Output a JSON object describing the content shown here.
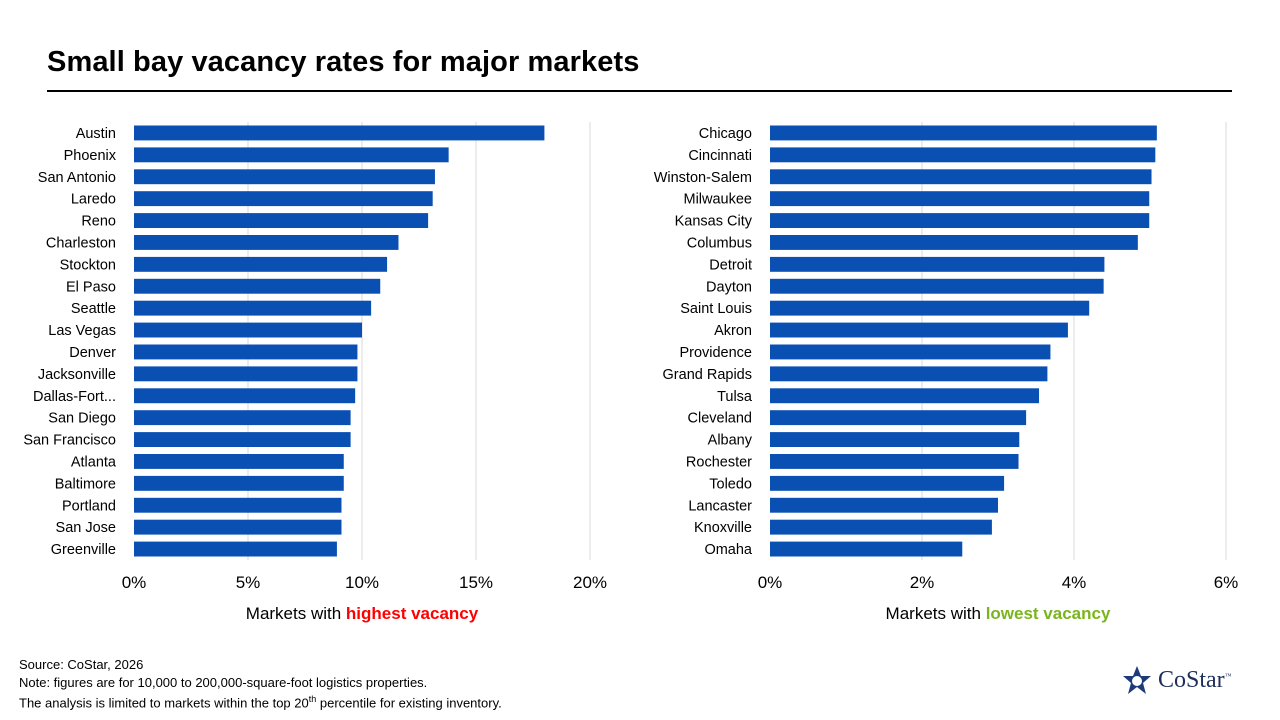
{
  "title": "Small bay vacancy rates for major markets",
  "chart_data": [
    {
      "type": "bar",
      "orientation": "horizontal",
      "caption_prefix": "Markets with ",
      "caption_highlight": "highest vacancy",
      "caption_highlight_color": "#ff0000",
      "bar_color": "#0a50b3",
      "xlim": [
        0,
        20
      ],
      "xticks": [
        "0%",
        "5%",
        "10%",
        "15%",
        "20%"
      ],
      "grid": true,
      "categories": [
        "Austin",
        "Phoenix",
        "San Antonio",
        "Laredo",
        "Reno",
        "Charleston",
        "Stockton",
        "El Paso",
        "Seattle",
        "Las Vegas",
        "Denver",
        "Jacksonville",
        "Dallas-Fort...",
        "San Diego",
        "San Francisco",
        "Atlanta",
        "Baltimore",
        "Portland",
        "San Jose",
        "Greenville"
      ],
      "values": [
        18.0,
        13.8,
        13.2,
        13.1,
        12.9,
        11.6,
        11.1,
        10.8,
        10.4,
        10.0,
        9.8,
        9.8,
        9.7,
        9.5,
        9.5,
        9.2,
        9.2,
        9.1,
        9.1,
        8.9
      ]
    },
    {
      "type": "bar",
      "orientation": "horizontal",
      "caption_prefix": "Markets with ",
      "caption_highlight": "lowest vacancy",
      "caption_highlight_color": "#7ab51d",
      "bar_color": "#0a50b3",
      "xlim": [
        0,
        6
      ],
      "xticks": [
        "0%",
        "2%",
        "4%",
        "6%"
      ],
      "grid": true,
      "categories": [
        "Chicago",
        "Cincinnati",
        "Winston-Salem",
        "Milwaukee",
        "Kansas City",
        "Columbus",
        "Detroit",
        "Dayton",
        "Saint Louis",
        "Akron",
        "Providence",
        "Grand Rapids",
        "Tulsa",
        "Cleveland",
        "Albany",
        "Rochester",
        "Toledo",
        "Lancaster",
        "Knoxville",
        "Omaha"
      ],
      "values": [
        5.09,
        5.07,
        5.02,
        4.99,
        4.99,
        4.84,
        4.4,
        4.39,
        4.2,
        3.92,
        3.69,
        3.65,
        3.54,
        3.37,
        3.28,
        3.27,
        3.08,
        3.0,
        2.92,
        2.53
      ]
    }
  ],
  "footnotes": {
    "source": "Source: CoStar, 2026",
    "note": "Note: figures are for 10,000 to 200,000-square-foot logistics properties.",
    "analysis_pre": "The analysis is limited to markets within the top 20",
    "analysis_sup": "th",
    "analysis_post": " percentile for existing inventory."
  },
  "logo": {
    "name": "CoStar",
    "tm": "™",
    "icon": "costar-star-icon"
  }
}
